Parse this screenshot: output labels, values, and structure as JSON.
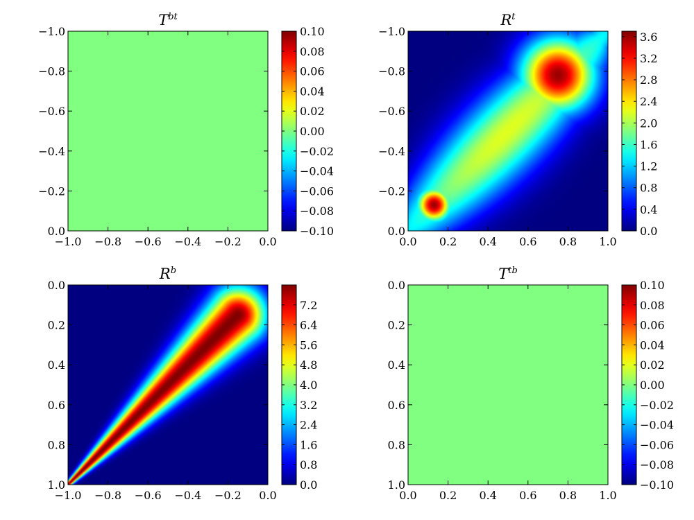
{
  "chart_data": [
    {
      "type": "heatmap",
      "title": "T",
      "title_superscript": "bt",
      "uniform_value": 0.0,
      "xlim": [
        -1.0,
        0.0
      ],
      "ylim": [
        0.0,
        -1.0
      ],
      "x_ticks": [
        -1.0,
        -0.8,
        -0.6,
        -0.4,
        -0.2,
        0.0
      ],
      "x_tick_labels": [
        "−1.0",
        "−0.8",
        "−0.6",
        "−0.4",
        "−0.2",
        "0.0"
      ],
      "y_ticks": [
        -1.0,
        -0.8,
        -0.6,
        -0.4,
        -0.2,
        0.0
      ],
      "y_tick_labels": [
        "−1.0",
        "−0.8",
        "−0.6",
        "−0.4",
        "−0.2",
        "0.0"
      ],
      "colorbar": {
        "min": -0.1,
        "max": 0.1,
        "ticks": [
          0.1,
          0.08,
          0.06,
          0.04,
          0.02,
          0.0,
          -0.02,
          -0.04,
          -0.06,
          -0.08,
          -0.1
        ],
        "tick_labels": [
          "0.10",
          "0.08",
          "0.06",
          "0.04",
          "0.02",
          "0.00",
          "−0.02",
          "−0.04",
          "−0.06",
          "−0.08",
          "−0.10"
        ]
      },
      "colormap": "jet"
    },
    {
      "type": "heatmap",
      "title": "R",
      "title_superscript": "t",
      "xlim": [
        0.0,
        1.0
      ],
      "ylim": [
        0.0,
        -1.0
      ],
      "x_ticks": [
        0.0,
        0.2,
        0.4,
        0.6,
        0.8,
        1.0
      ],
      "x_tick_labels": [
        "0.0",
        "0.2",
        "0.4",
        "0.6",
        "0.8",
        "1.0"
      ],
      "y_ticks": [
        -1.0,
        -0.8,
        -0.6,
        -0.4,
        -0.2,
        0.0
      ],
      "y_tick_labels": [
        "−1.0",
        "−0.8",
        "−0.6",
        "−0.4",
        "−0.2",
        "0.0"
      ],
      "colorbar": {
        "min": 0.0,
        "max": 3.7,
        "ticks": [
          3.6,
          3.2,
          2.8,
          2.4,
          2.0,
          1.6,
          1.2,
          0.8,
          0.4,
          0.0
        ],
        "tick_labels": [
          "3.6",
          "3.2",
          "2.8",
          "2.4",
          "2.0",
          "1.6",
          "1.2",
          "0.8",
          "0.4",
          "0.0"
        ]
      },
      "colormap": "jet",
      "features": [
        {
          "kind": "diagonal_ridge",
          "from": [
            0.0,
            0.0
          ],
          "to": [
            1.0,
            -1.0
          ],
          "peak": 2.2,
          "width": 0.12
        },
        {
          "kind": "hotspot",
          "x": 0.13,
          "y": -0.13,
          "peak": 3.6,
          "width": 0.06
        },
        {
          "kind": "hotspot",
          "x": 0.75,
          "y": -0.78,
          "peak": 3.6,
          "width": 0.13
        }
      ]
    },
    {
      "type": "heatmap",
      "title": "R",
      "title_superscript": "b",
      "xlim": [
        -1.0,
        0.0
      ],
      "ylim": [
        1.0,
        0.0
      ],
      "x_ticks": [
        -1.0,
        -0.8,
        -0.6,
        -0.4,
        -0.2,
        0.0
      ],
      "x_tick_labels": [
        "−1.0",
        "−0.8",
        "−0.6",
        "−0.4",
        "−0.2",
        "0.0"
      ],
      "y_ticks": [
        0.0,
        0.2,
        0.4,
        0.6,
        0.8,
        1.0
      ],
      "y_tick_labels": [
        "0.0",
        "0.2",
        "0.4",
        "0.6",
        "0.8",
        "1.0"
      ],
      "colorbar": {
        "min": 0.0,
        "max": 8.0,
        "ticks": [
          7.2,
          6.4,
          5.6,
          4.8,
          4.0,
          3.2,
          2.4,
          1.6,
          0.8,
          0.0
        ],
        "tick_labels": [
          "7.2",
          "6.4",
          "5.6",
          "4.8",
          "4.0",
          "3.2",
          "2.4",
          "1.6",
          "0.8",
          "0.0"
        ]
      },
      "colormap": "jet",
      "features": [
        {
          "kind": "diagonal_band",
          "from": [
            -1.0,
            1.0
          ],
          "to": [
            -0.15,
            0.15
          ],
          "peak": 8.0,
          "width_start": 0.0,
          "width_end": 0.09
        }
      ]
    },
    {
      "type": "heatmap",
      "title": "T",
      "title_superscript": "tb",
      "uniform_value": 0.0,
      "xlim": [
        0.0,
        1.0
      ],
      "ylim": [
        1.0,
        0.0
      ],
      "x_ticks": [
        0.0,
        0.2,
        0.4,
        0.6,
        0.8,
        1.0
      ],
      "x_tick_labels": [
        "0.0",
        "0.2",
        "0.4",
        "0.6",
        "0.8",
        "1.0"
      ],
      "y_ticks": [
        0.0,
        0.2,
        0.4,
        0.6,
        0.8,
        1.0
      ],
      "y_tick_labels": [
        "0.0",
        "0.2",
        "0.4",
        "0.6",
        "0.8",
        "1.0"
      ],
      "colorbar": {
        "min": -0.1,
        "max": 0.1,
        "ticks": [
          0.1,
          0.08,
          0.06,
          0.04,
          0.02,
          0.0,
          -0.02,
          -0.04,
          -0.06,
          -0.08,
          -0.1
        ],
        "tick_labels": [
          "0.10",
          "0.08",
          "0.06",
          "0.04",
          "0.02",
          "0.00",
          "−0.02",
          "−0.04",
          "−0.06",
          "−0.08",
          "−0.10"
        ]
      },
      "colormap": "jet"
    }
  ]
}
